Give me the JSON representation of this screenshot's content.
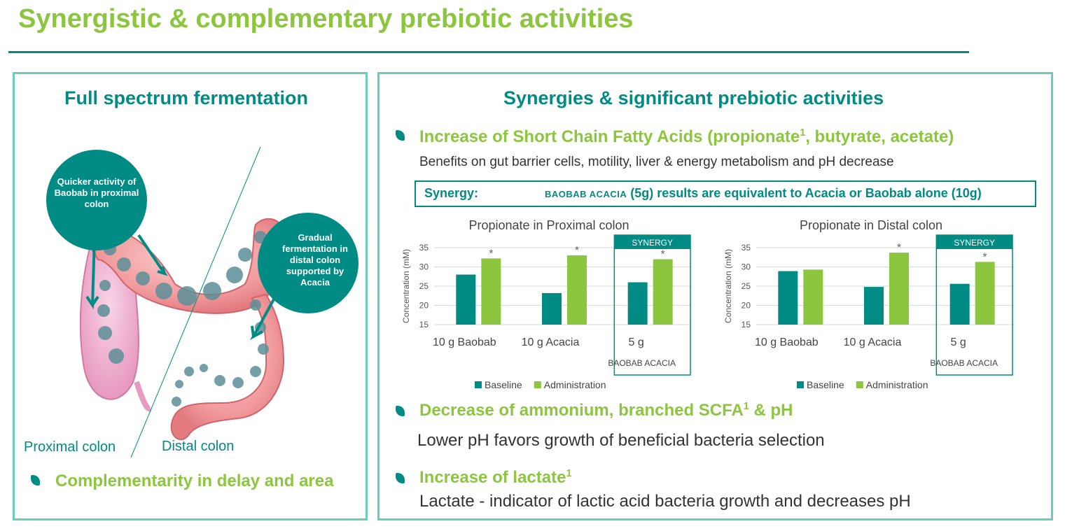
{
  "title": "Synergistic & complementary prebiotic activities",
  "left": {
    "heading": "Full spectrum fermentation",
    "callout_left": "Quicker activity of Baobab in proximal colon",
    "callout_right": "Gradual fermentation in distal colon supported by Acacia",
    "proximal_label": "Proximal colon",
    "distal_label": "Distal colon",
    "bullet": "Complementarity in delay and area"
  },
  "right": {
    "heading": "Synergies & significant prebiotic activities",
    "point1_title": "Increase of Short Chain Fatty Acids (propionate",
    "point1_sup": "1",
    "point1_title_end": ", butyrate, acetate)",
    "point1_text": "Benefits on gut barrier cells, motility, liver & energy metabolism and pH decrease",
    "synergy_label": "Synergy:",
    "synergy_names": "BAOBAB ACACIA",
    "synergy_text": " (5g) results are equivalent to Acacia or Baobab alone (10g)",
    "point2_title": "Decrease of ammonium, branched SCFA",
    "point2_sup": "1",
    "point2_title_end": " & pH",
    "point2_text": "Lower pH favors growth of beneficial bacteria selection",
    "point3_title": "Increase of lactate",
    "point3_sup": "1",
    "point3_text": "Lactate - indicator of lactic acid bacteria growth and decreases pH"
  },
  "colors": {
    "teal": "#008b84",
    "green": "#8cc63f",
    "panel_border": "#6ccbc0"
  },
  "chart_data": [
    {
      "type": "bar",
      "title": "Propionate in Proximal colon",
      "ylabel": "Concentration (mM)",
      "ylim": [
        15,
        35
      ],
      "yticks": [
        15,
        20,
        25,
        30,
        35
      ],
      "grid": true,
      "legend_position": "bottom",
      "categories": [
        "10 g  Baobab",
        "10 g  Acacia",
        "5 g"
      ],
      "category_sub": [
        "",
        "",
        "BAOBAB ACACIA"
      ],
      "highlight_label": "SYNERGY",
      "series": [
        {
          "name": "Baseline",
          "color": "#008b84",
          "values": [
            28,
            23.2,
            26
          ]
        },
        {
          "name": "Administration",
          "color": "#8cc63f",
          "values": [
            32.2,
            33,
            32
          ],
          "markers": [
            "*",
            "*",
            "*"
          ]
        }
      ]
    },
    {
      "type": "bar",
      "title": "Propionate in Distal colon",
      "ylabel": "Concentration (mM)",
      "ylim": [
        15,
        35
      ],
      "yticks": [
        15,
        20,
        25,
        30,
        35
      ],
      "grid": true,
      "legend_position": "bottom",
      "categories": [
        "10 g  Baobab",
        "10 g  Acacia",
        "5 g"
      ],
      "category_sub": [
        "",
        "",
        "BAOBAB ACACIA"
      ],
      "highlight_label": "SYNERGY",
      "series": [
        {
          "name": "Baseline",
          "color": "#008b84",
          "values": [
            28.9,
            24.8,
            25.6
          ]
        },
        {
          "name": "Administration",
          "color": "#8cc63f",
          "values": [
            29.3,
            33.7,
            31.3
          ],
          "markers": [
            "",
            "*",
            "*"
          ]
        }
      ]
    }
  ]
}
